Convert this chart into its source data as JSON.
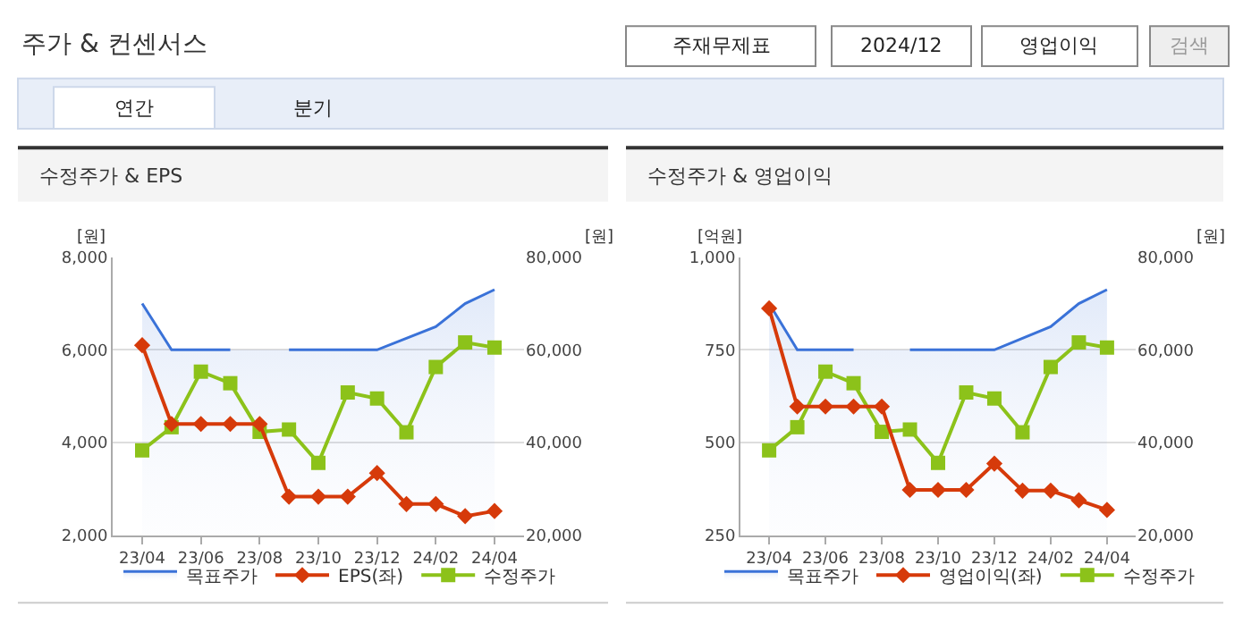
{
  "chart_data": [
    {
      "type": "line",
      "title": "수정주가 & EPS",
      "ylabel": "[원]",
      "y2label": "[원]",
      "annotations": [
        "주가 & 컨센서스",
        "주재무제표",
        "2024/12",
        "영업이익",
        "검색",
        "연간",
        "분기"
      ],
      "categories": [
        "23/04",
        null,
        "23/06",
        null,
        "23/08",
        null,
        "23/10",
        null,
        "23/12",
        null,
        "24/02",
        null,
        "24/04"
      ],
      "ylim": [
        2000,
        8000
      ],
      "yticks": [
        {
          "value": 2000,
          "label": "2,000"
        },
        {
          "value": 4000,
          "label": "4,000"
        },
        {
          "value": 6000,
          "label": "6,000"
        },
        {
          "value": 8000,
          "label": "8,000"
        }
      ],
      "y2lim": [
        20000,
        80000
      ],
      "y2ticks": [
        {
          "value": 20000,
          "label": "20,000"
        },
        {
          "value": 40000,
          "label": "40,000"
        },
        {
          "value": 60000,
          "label": "60,000"
        },
        {
          "value": 80000,
          "label": "80,000"
        }
      ],
      "grid": "y",
      "legend": "bottom",
      "line_style": "solid",
      "series": [
        {
          "name": "목표주가",
          "type": "area",
          "axis": "y2",
          "color": "#3a72d8",
          "marker": "none",
          "values": [
            70000,
            60000,
            60000,
            60000,
            null,
            60000,
            60000,
            60000,
            60000,
            62500,
            65000,
            70000,
            73000
          ]
        },
        {
          "name": "EPS(좌)",
          "color": "#d63a0a",
          "marker": "diamond",
          "values": [
            6100,
            4400,
            4400,
            4400,
            4400,
            2830,
            2830,
            2830,
            3340,
            2670,
            2670,
            2410,
            2520
          ]
        },
        {
          "name": "수정주가",
          "axis": "y2",
          "color": "#8cc21a",
          "marker": "square",
          "values": [
            38300,
            43300,
            55300,
            52800,
            42300,
            42800,
            35600,
            50800,
            49500,
            42200,
            56300,
            61600,
            60500
          ]
        }
      ]
    },
    {
      "type": "line",
      "title": "수정주가 & 영업이익",
      "ylabel": "[억원]",
      "y2label": "[원]",
      "categories": [
        "23/04",
        null,
        "23/06",
        null,
        "23/08",
        null,
        "23/10",
        null,
        "23/12",
        null,
        "24/02",
        null,
        "24/04"
      ],
      "ylim": [
        250,
        1000
      ],
      "yticks": [
        250,
        500,
        750,
        {
          "value": 1000,
          "label": "1,000"
        }
      ],
      "y2lim": [
        20000,
        80000
      ],
      "y2ticks": [
        {
          "value": 20000,
          "label": "20,000"
        },
        {
          "value": 40000,
          "label": "40,000"
        },
        {
          "value": 60000,
          "label": "60,000"
        },
        {
          "value": 80000,
          "label": "80,000"
        }
      ],
      "grid": "y",
      "legend": "bottom",
      "line_style": "solid",
      "series": [
        {
          "name": "목표주가",
          "type": "area",
          "axis": "y2",
          "color": "#3a72d8",
          "marker": "none",
          "values": [
            70000,
            60000,
            60000,
            60000,
            null,
            60000,
            60000,
            60000,
            60000,
            62500,
            65000,
            70000,
            73000
          ]
        },
        {
          "name": "영업이익(좌)",
          "color": "#d63a0a",
          "marker": "diamond",
          "values": [
            862,
            597,
            597,
            597,
            597,
            372,
            372,
            372,
            443,
            370,
            370,
            344,
            318
          ]
        },
        {
          "name": "수정주가",
          "axis": "y2",
          "color": "#8cc21a",
          "marker": "square",
          "values": [
            38300,
            43300,
            55300,
            52800,
            42300,
            42800,
            35600,
            50800,
            49500,
            42200,
            56300,
            61600,
            60500
          ]
        }
      ]
    }
  ]
}
